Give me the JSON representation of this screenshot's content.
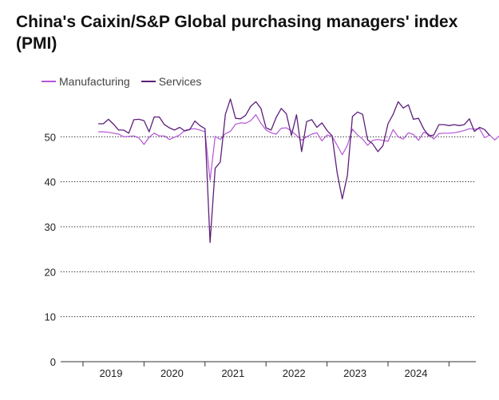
{
  "title": "China's Caixin/S&P Global purchasing managers' index (PMI)",
  "colors": {
    "manufacturing": "#b455d6",
    "services": "#5c1f79",
    "grid": "#000000"
  },
  "chart_data": {
    "type": "line",
    "title": "China's Caixin/S&P Global purchasing managers' index (PMI)",
    "xlabel": "",
    "ylabel": "",
    "ylim": [
      0,
      60
    ],
    "yticks": [
      0,
      10,
      20,
      30,
      40,
      50
    ],
    "xticks": [
      "2019",
      "2020",
      "2021",
      "2022",
      "2023",
      "2024"
    ],
    "x_start": "2018-04",
    "grid": "horizontal dotted",
    "legend": "top-left",
    "series": [
      {
        "name": "Manufacturing",
        "color": "#b455d6",
        "values": [
          51.1,
          51.1,
          51.0,
          50.8,
          50.6,
          50.0,
          50.1,
          50.2,
          49.7,
          48.3,
          49.9,
          50.8,
          50.2,
          50.2,
          49.4,
          49.9,
          50.4,
          51.4,
          51.7,
          51.8,
          51.5,
          51.1,
          40.3,
          50.1,
          49.4,
          50.7,
          51.2,
          52.8,
          53.1,
          53.0,
          53.6,
          54.9,
          53.0,
          51.5,
          50.9,
          50.6,
          51.9,
          52.0,
          51.3,
          50.3,
          49.2,
          50.0,
          50.6,
          50.9,
          49.1,
          50.4,
          50.1,
          48.1,
          46.0,
          48.1,
          51.7,
          50.4,
          49.5,
          48.1,
          49.2,
          49.4,
          49.2,
          49.0,
          51.6,
          50.0,
          49.5,
          50.9,
          50.5,
          49.2,
          51.0,
          50.6,
          49.5,
          50.7,
          50.8,
          50.8,
          50.9,
          51.1,
          51.4,
          51.8,
          51.7,
          51.8,
          49.8,
          50.4,
          49.3,
          50.3
        ]
      },
      {
        "name": "Services",
        "color": "#5c1f79",
        "values": [
          52.9,
          52.9,
          53.9,
          52.8,
          51.5,
          51.5,
          50.8,
          53.8,
          53.9,
          53.6,
          51.1,
          54.4,
          54.4,
          52.7,
          52.0,
          51.5,
          52.1,
          51.3,
          51.6,
          53.5,
          52.5,
          51.8,
          26.5,
          43.0,
          44.4,
          55.0,
          58.4,
          54.1,
          54.0,
          54.8,
          56.8,
          57.8,
          56.3,
          52.0,
          51.5,
          54.3,
          56.3,
          55.1,
          50.3,
          54.9,
          46.7,
          53.4,
          53.8,
          52.1,
          53.1,
          51.4,
          50.2,
          42.0,
          36.2,
          41.4,
          54.5,
          55.5,
          55.0,
          49.3,
          48.4,
          46.7,
          48.0,
          52.9,
          55.0,
          57.8,
          56.4,
          57.1,
          53.9,
          54.1,
          51.8,
          50.2,
          50.4,
          52.7,
          52.7,
          52.5,
          52.7,
          52.5,
          52.7,
          54.0,
          51.2,
          52.1,
          51.6,
          50.3
        ]
      }
    ]
  }
}
